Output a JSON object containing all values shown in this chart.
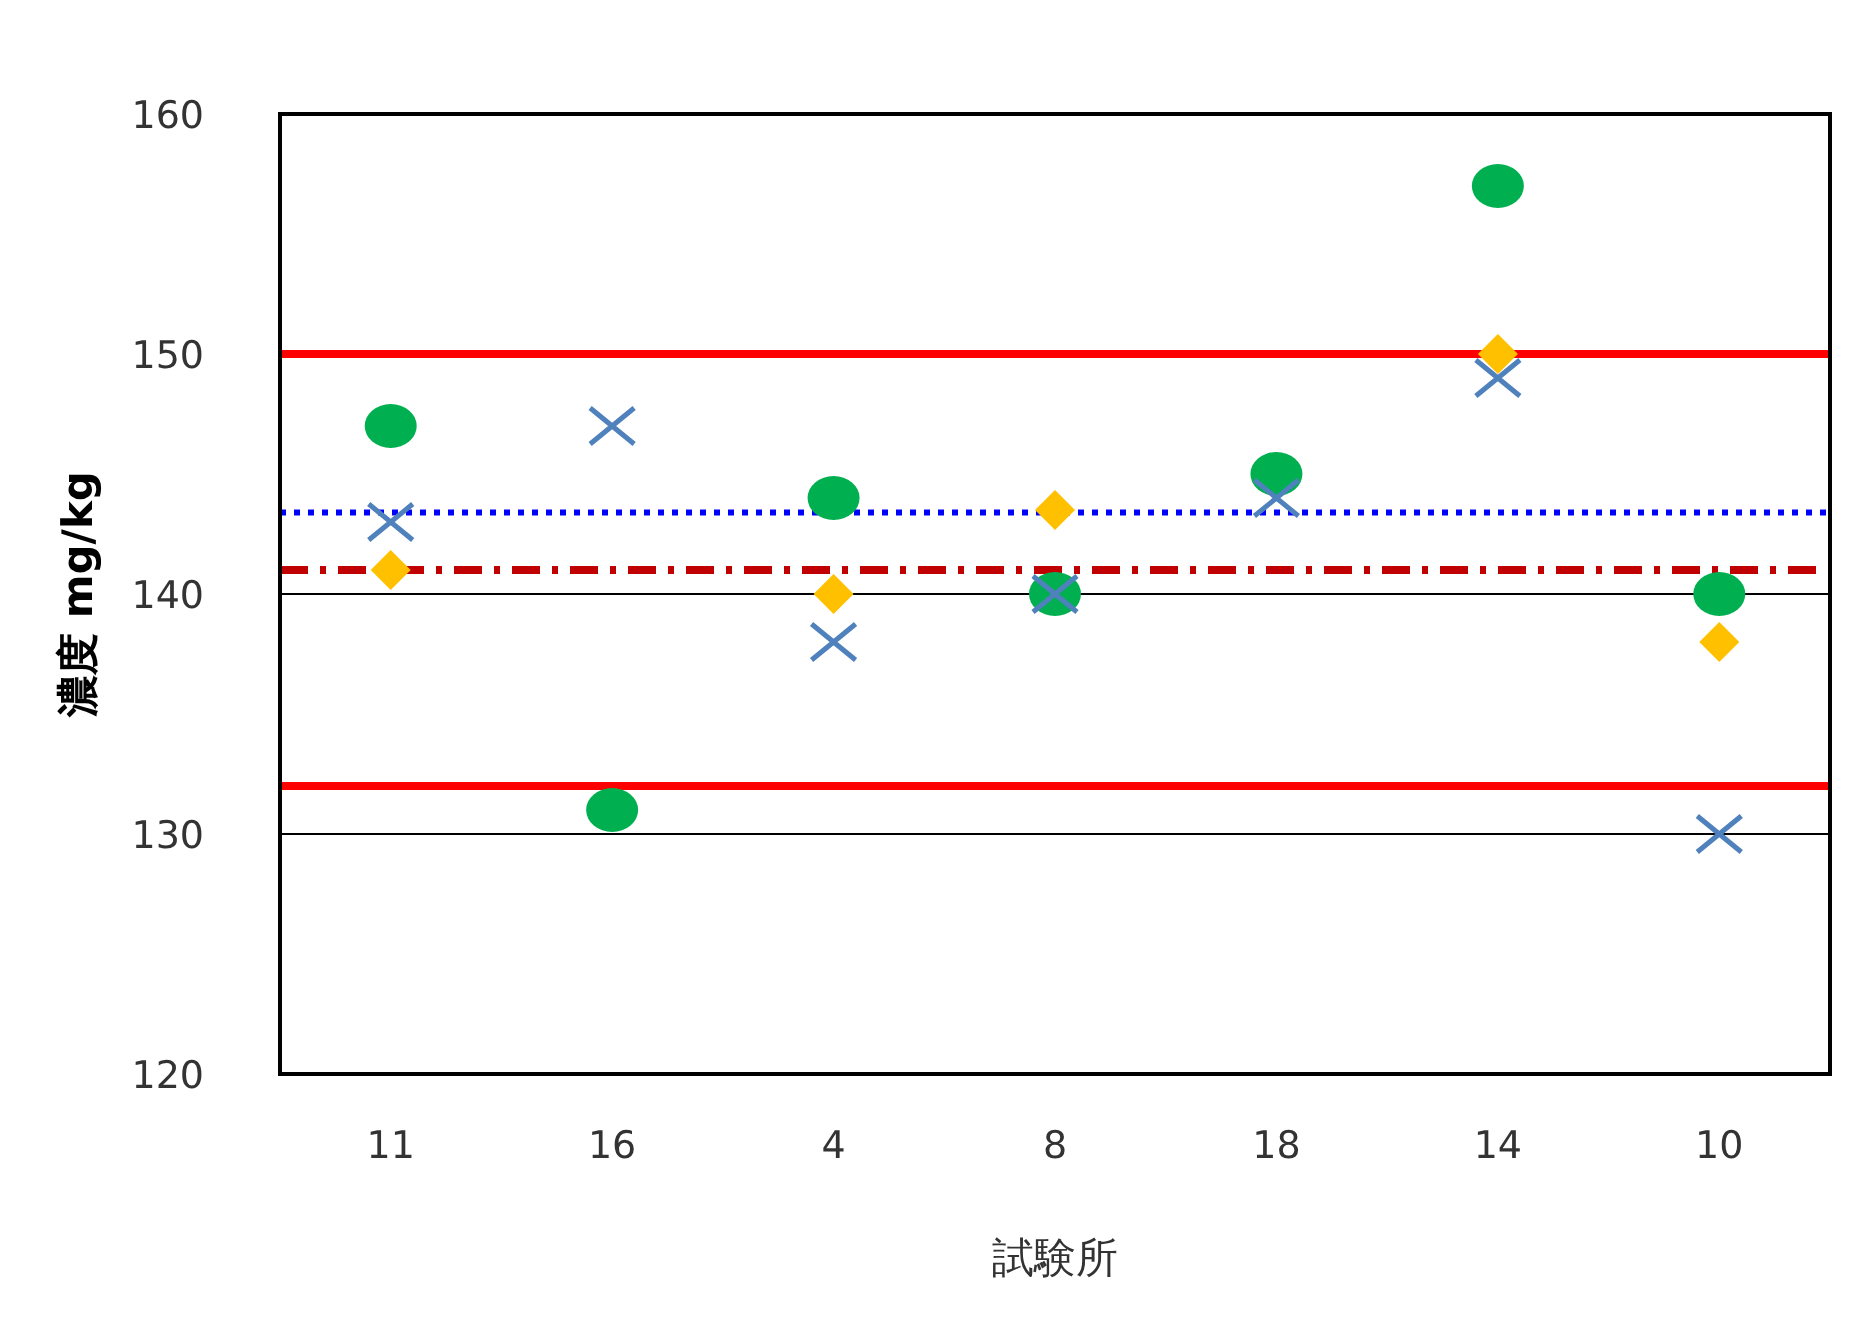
{
  "chart_data": {
    "type": "scatter",
    "xlabel": "試験所",
    "ylabel": "濃度 mg/kg",
    "categories": [
      "11",
      "16",
      "4",
      "8",
      "18",
      "14",
      "10"
    ],
    "ylim": [
      120,
      160
    ],
    "yticks": [
      120,
      130,
      140,
      150,
      160
    ],
    "grid": "y",
    "series": [
      {
        "color": "#00b050",
        "marker": "circle",
        "values": [
          147,
          131,
          144,
          140,
          145,
          157,
          140
        ]
      },
      {
        "color": "#4f81bd",
        "marker": "cross",
        "values": [
          143,
          147,
          138,
          140,
          144,
          149,
          130
        ]
      },
      {
        "color": "#ffc000",
        "marker": "diamond",
        "values": [
          141,
          null,
          140,
          143.5,
          null,
          150,
          138
        ]
      }
    ],
    "ref_lines": [
      {
        "axis": "y",
        "value": 150,
        "color": "#ff0000",
        "line_style": "solid"
      },
      {
        "axis": "y",
        "value": 132,
        "color": "#ff0000",
        "line_style": "solid"
      },
      {
        "axis": "y",
        "value": 143.4,
        "color": "#0000ff",
        "line_style": "dotted"
      },
      {
        "axis": "y",
        "value": 141,
        "color": "#c00000",
        "line_style": "dashdot"
      }
    ]
  }
}
